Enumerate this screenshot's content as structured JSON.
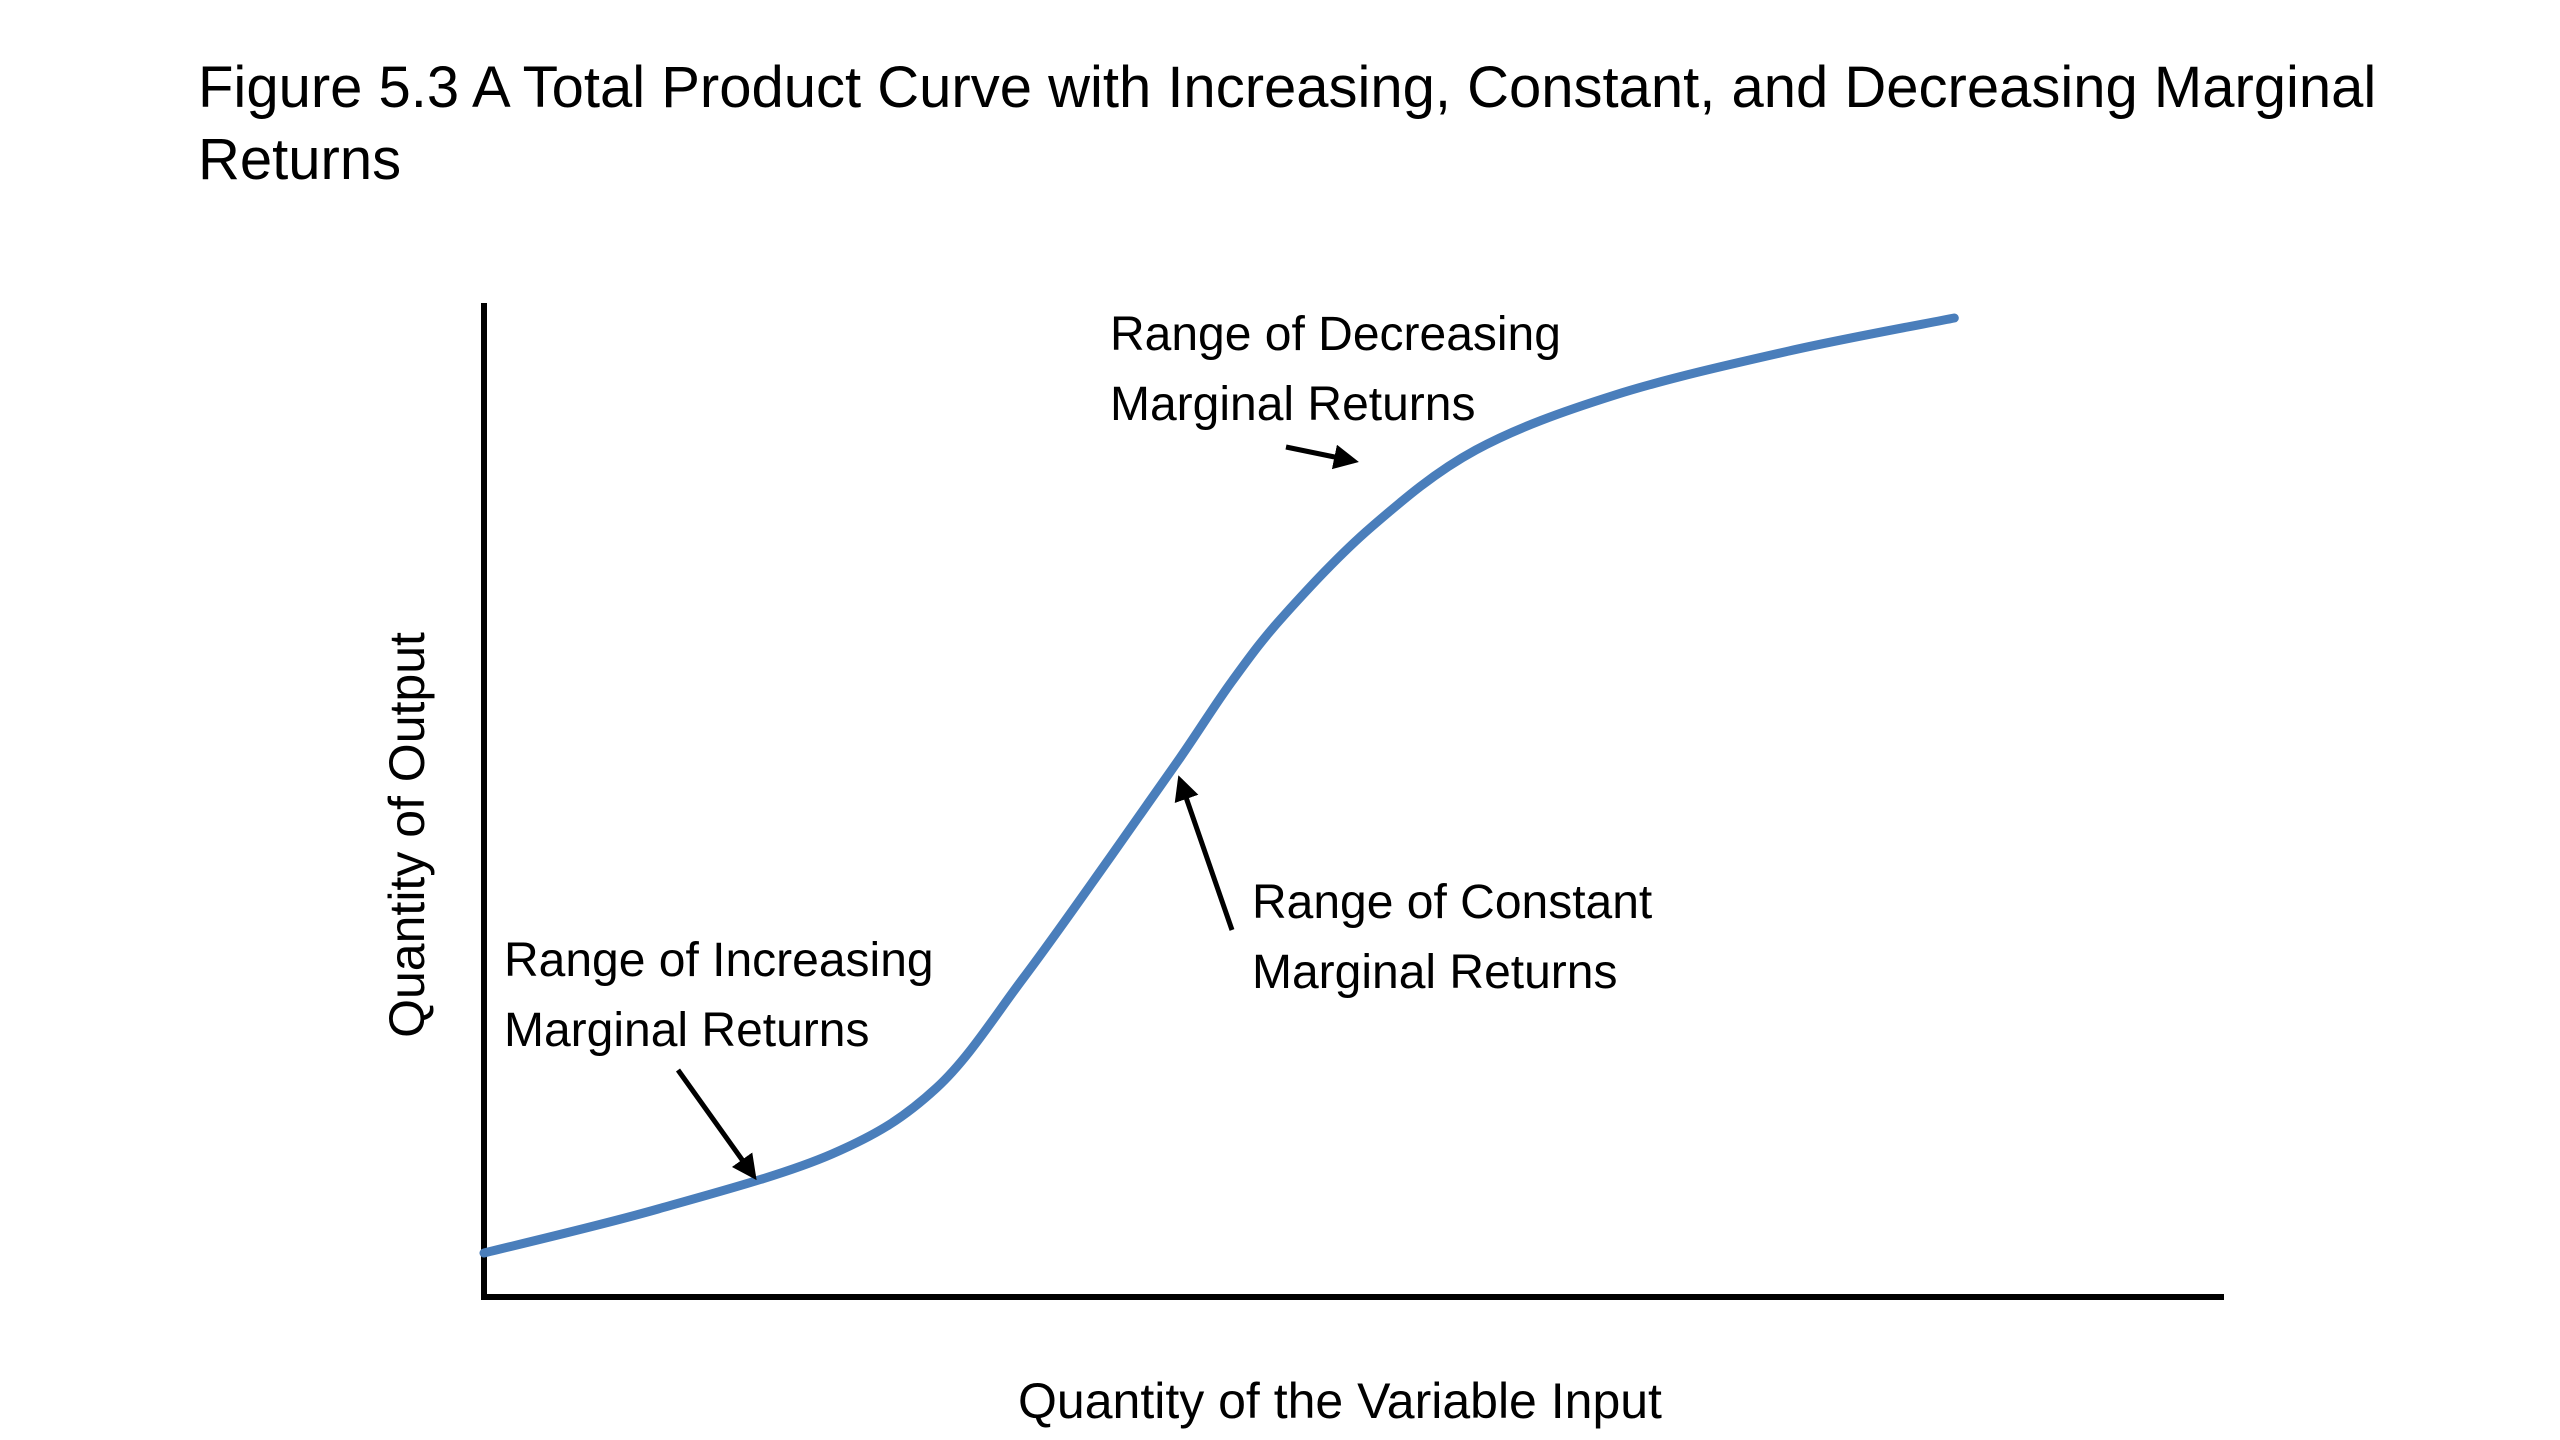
{
  "page": {
    "title": "Figure 5.3  A Total Product Curve with Increasing, Constant, and Decreasing Marginal Returns"
  },
  "chart_data": {
    "type": "line",
    "title": "Figure 5.3  A Total Product Curve with Increasing, Constant, and Decreasing Marginal Returns",
    "xlabel": "Quantity of the Variable Input",
    "ylabel": "Quantity of Output",
    "xlim": [
      0,
      100
    ],
    "ylim": [
      0,
      100
    ],
    "grid": false,
    "ticks_shown": false,
    "series": [
      {
        "color": "#4a7ebb",
        "points": [
          {
            "x": 0,
            "y": 4
          },
          {
            "x": 10,
            "y": 8
          },
          {
            "x": 20,
            "y": 13
          },
          {
            "x": 26,
            "y": 19
          },
          {
            "x": 31,
            "y": 29
          },
          {
            "x": 36,
            "y": 40
          },
          {
            "x": 40,
            "y": 49
          },
          {
            "x": 43,
            "y": 56
          },
          {
            "x": 46,
            "y": 62
          },
          {
            "x": 51,
            "y": 70
          },
          {
            "x": 57,
            "y": 77
          },
          {
            "x": 65,
            "y": 82
          },
          {
            "x": 75,
            "y": 86
          },
          {
            "x": 84.5,
            "y": 89
          }
        ]
      }
    ],
    "annotations": [
      {
        "line1": "Range of Increasing",
        "line2": "Marginal Returns",
        "arrow_target": {
          "x": 15.5,
          "y": 11
        },
        "arrow_color": "#000000"
      },
      {
        "line1": "Range of Constant",
        "line2": "Marginal Returns",
        "arrow_target": {
          "x": 40,
          "y": 47
        },
        "arrow_color": "#000000"
      },
      {
        "line1": "Range of Decreasing",
        "line2": "Marginal Returns",
        "arrow_target": {
          "x": 50,
          "y": 76
        },
        "arrow_color": "#000000"
      }
    ]
  }
}
